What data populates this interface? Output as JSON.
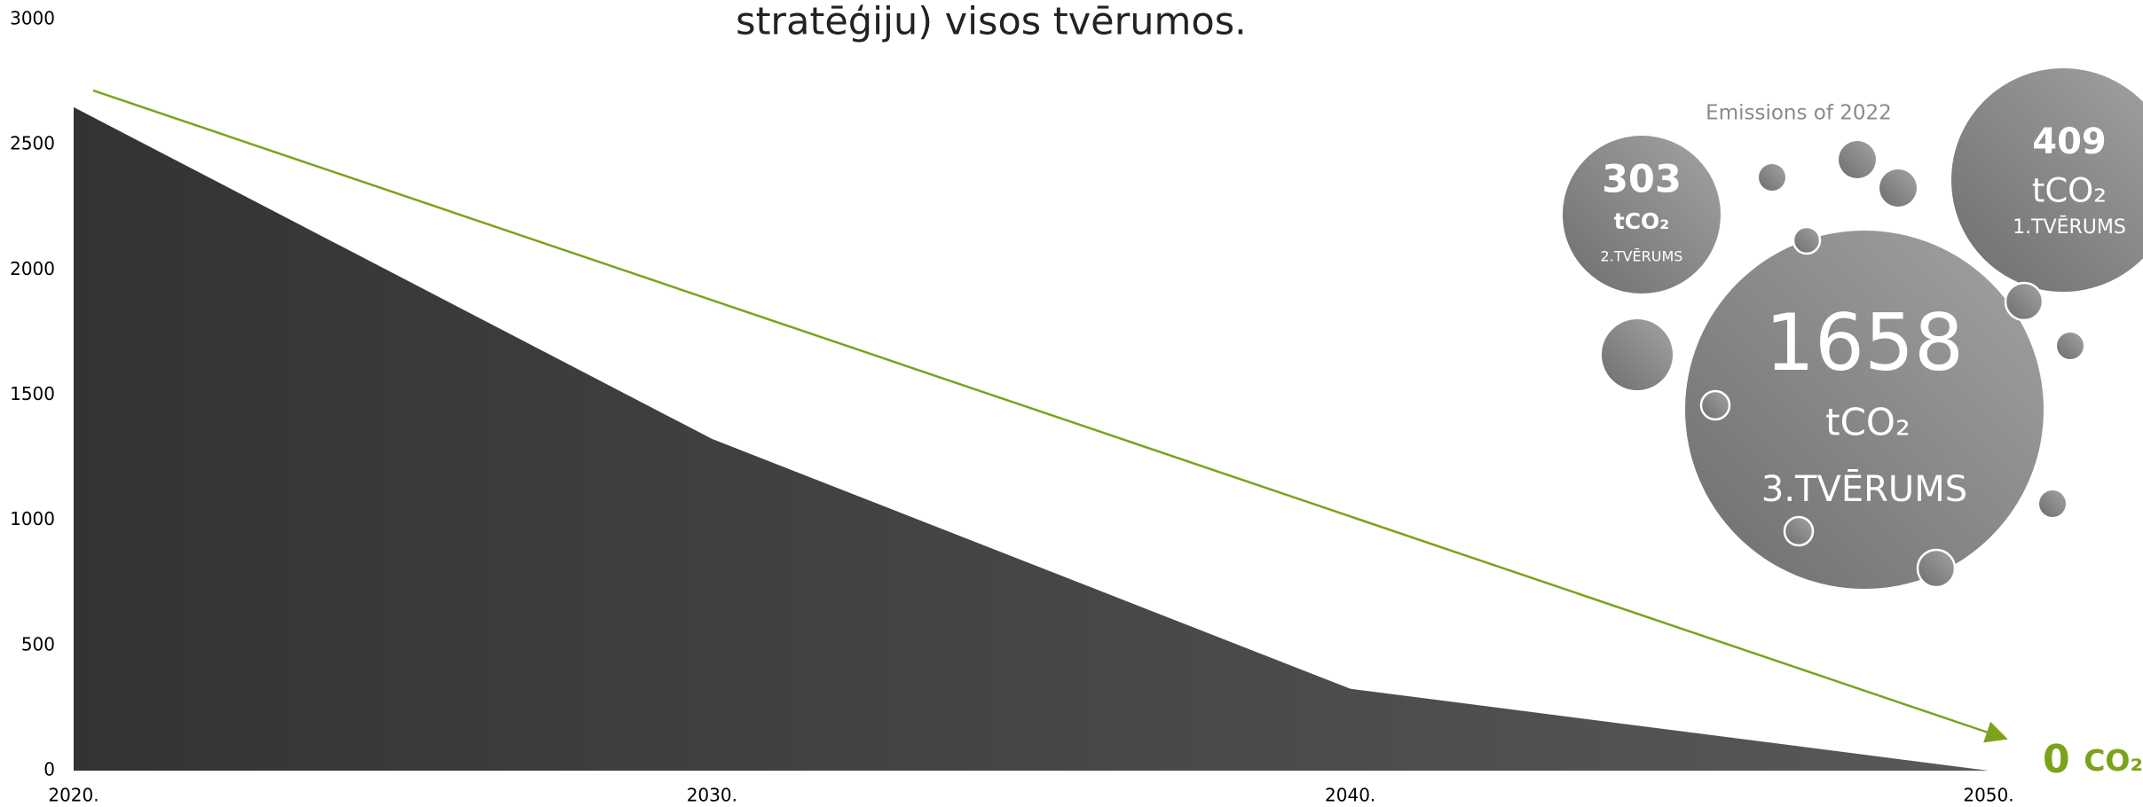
{
  "chart_data": {
    "type": "area",
    "title": "stratēģiju) visos tvērumos.",
    "categories": [
      "2020.",
      "2030.",
      "2040.",
      "2050."
    ],
    "values": [
      2650,
      1325,
      327,
      0
    ],
    "ylim": [
      0,
      3000
    ],
    "yticks": [
      0,
      500,
      1000,
      1500,
      2000,
      2500,
      3000
    ],
    "color": "#3a3a3a",
    "annotation": "Emissions of 2022",
    "bubbles": [
      {
        "value": "303",
        "unit": "tCO₂",
        "label": "2.TVĒRUMS"
      },
      {
        "value": "409",
        "unit": "tCO₂",
        "label": "1.TVĒRUMS"
      },
      {
        "value": "1658",
        "unit": "tCO₂",
        "label": "3.TVĒRUMS"
      }
    ],
    "target": {
      "value": "0",
      "unit": "CO₂",
      "color": "#7aa31a"
    }
  }
}
